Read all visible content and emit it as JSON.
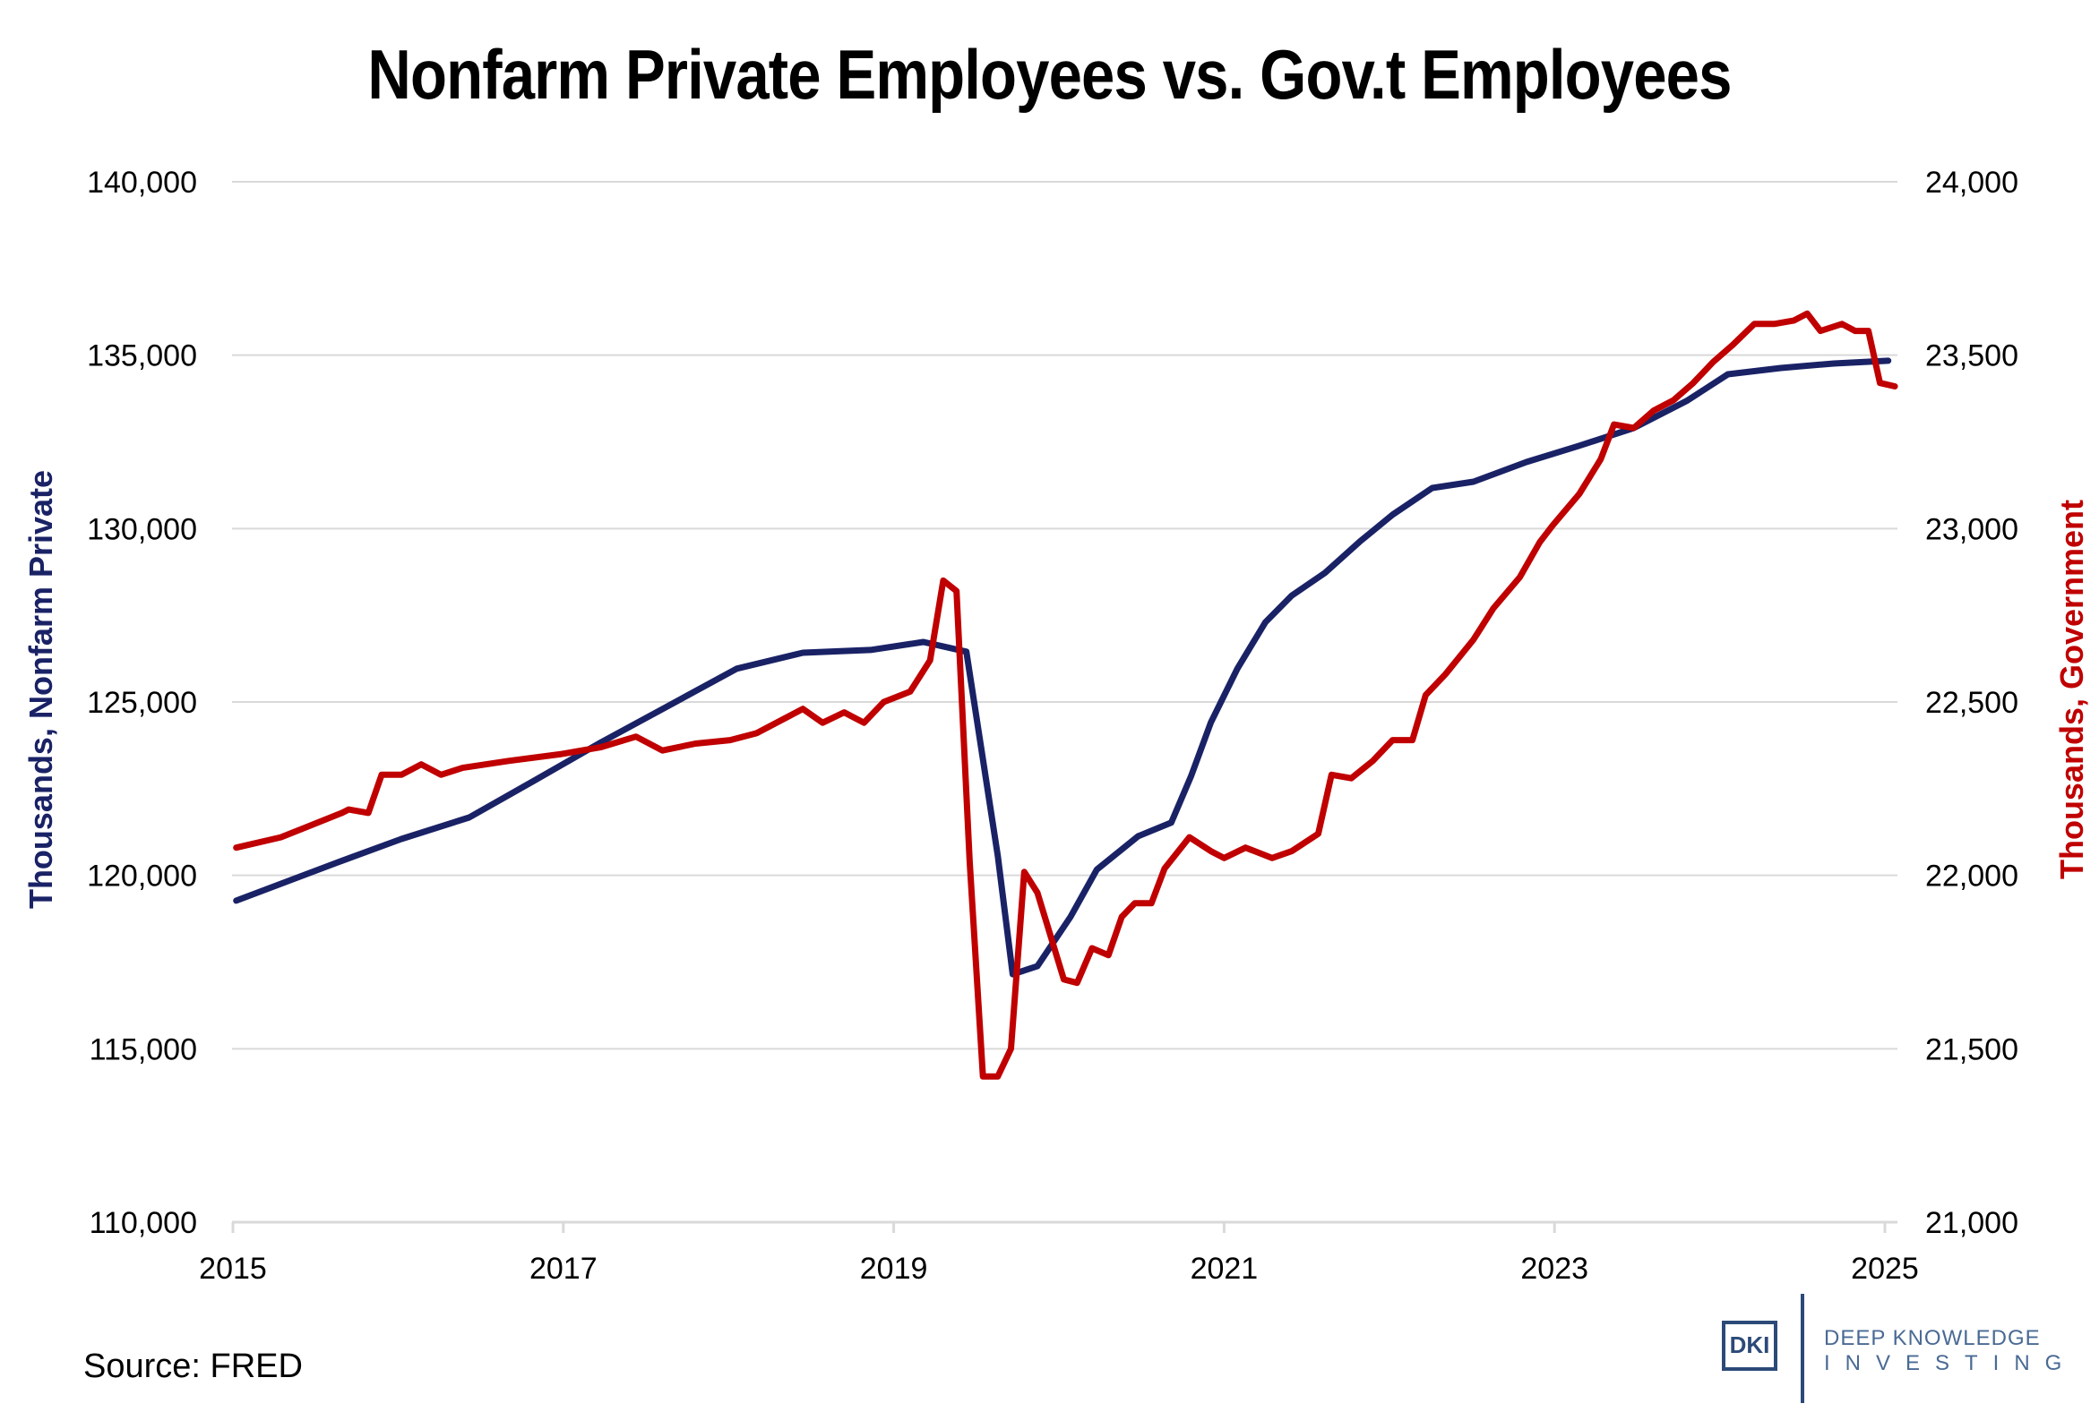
{
  "chart_data": {
    "type": "line",
    "title": "Nonfarm Private Employees vs. Gov.t Employees",
    "xlabel": "",
    "x_ticks": [
      "2015",
      "2017",
      "2019",
      "2021",
      "2023",
      "2025"
    ],
    "xlim": [
      2015,
      2025
    ],
    "left_axis": {
      "label": "Thousands, Nonfarm Private",
      "ylim": [
        110000,
        140000
      ],
      "ticks": [
        "110,000",
        "115,000",
        "120,000",
        "125,000",
        "130,000",
        "135,000",
        "140,000"
      ],
      "tick_values": [
        110000,
        115000,
        120000,
        125000,
        130000,
        135000,
        140000
      ]
    },
    "right_axis": {
      "label": "Thousands, Government",
      "ylim": [
        21000,
        24000
      ],
      "ticks": [
        "21,000",
        "21,500",
        "22,000",
        "22,500",
        "23,000",
        "23,500",
        "24,000"
      ],
      "tick_values": [
        21000,
        21500,
        22000,
        22500,
        23000,
        23500,
        24000
      ]
    },
    "grid": true,
    "legend": "none",
    "series": [
      {
        "name": "Nonfarm Private",
        "axis": "left",
        "color": "#1a2266",
        "x": [
          2015.02,
          2015.62,
          2016.02,
          2016.43,
          2016.83,
          2017.23,
          2017.64,
          2018.05,
          2018.45,
          2018.86,
          2019.18,
          2019.44,
          2019.63,
          2019.72,
          2019.87,
          2020.07,
          2020.23,
          2020.48,
          2020.68,
          2020.8,
          2020.92,
          2021.08,
          2021.25,
          2021.41,
          2021.61,
          2021.82,
          2022.02,
          2022.26,
          2022.51,
          2022.83,
          2023.15,
          2023.48,
          2023.8,
          2024.05,
          2024.37,
          2024.69,
          2025.02
        ],
        "values": [
          119270,
          120350,
          121050,
          121670,
          122750,
          123840,
          124900,
          125960,
          126420,
          126500,
          126730,
          126450,
          120560,
          117150,
          117380,
          118800,
          120170,
          121130,
          121520,
          122860,
          124410,
          125960,
          127300,
          128070,
          128720,
          129620,
          130400,
          131170,
          131350,
          131920,
          132390,
          132900,
          133680,
          134450,
          134630,
          134760,
          134840
        ]
      },
      {
        "name": "Government",
        "axis": "right",
        "color": "#c00000",
        "x": [
          2015.02,
          2015.29,
          2015.45,
          2015.66,
          2015.7,
          2015.82,
          2015.9,
          2016.02,
          2016.14,
          2016.26,
          2016.39,
          2016.67,
          2016.99,
          2017.23,
          2017.44,
          2017.6,
          2017.8,
          2018.01,
          2018.17,
          2018.37,
          2018.45,
          2018.57,
          2018.7,
          2018.82,
          2018.94,
          2019.1,
          2019.22,
          2019.3,
          2019.38,
          2019.46,
          2019.54,
          2019.63,
          2019.71,
          2019.79,
          2019.87,
          2020.03,
          2020.11,
          2020.2,
          2020.3,
          2020.38,
          2020.46,
          2020.56,
          2020.64,
          2020.79,
          2020.92,
          2021.0,
          2021.13,
          2021.29,
          2021.41,
          2021.57,
          2021.65,
          2021.77,
          2021.9,
          2022.02,
          2022.14,
          2022.22,
          2022.34,
          2022.51,
          2022.63,
          2022.79,
          2022.91,
          2022.99,
          2023.15,
          2023.28,
          2023.36,
          2023.48,
          2023.6,
          2023.72,
          2023.84,
          2023.96,
          2024.08,
          2024.21,
          2024.33,
          2024.45,
          2024.53,
          2024.61,
          2024.74,
          2024.82,
          2024.9,
          2024.97,
          2025.06
        ],
        "values": [
          22080,
          22110,
          22140,
          22180,
          22190,
          22180,
          22290,
          22290,
          22320,
          22290,
          22310,
          22330,
          22350,
          22370,
          22400,
          22360,
          22380,
          22390,
          22410,
          22460,
          22480,
          22440,
          22470,
          22440,
          22500,
          22530,
          22620,
          22850,
          22820,
          22040,
          21420,
          21420,
          21500,
          22010,
          21950,
          21700,
          21690,
          21790,
          21770,
          21880,
          21920,
          21920,
          22020,
          22110,
          22070,
          22050,
          22080,
          22050,
          22070,
          22120,
          22290,
          22280,
          22330,
          22390,
          22390,
          22520,
          22580,
          22680,
          22770,
          22860,
          22960,
          23010,
          23100,
          23200,
          23300,
          23290,
          23340,
          23370,
          23420,
          23480,
          23530,
          23590,
          23590,
          23600,
          23620,
          23570,
          23590,
          23570,
          23570,
          23420,
          23410
        ]
      }
    ]
  },
  "footer": {
    "source": "Source: FRED"
  },
  "logo": {
    "mark": "DKI",
    "line1": "DEEP KNOWLEDGE",
    "line2": "INVESTING"
  }
}
